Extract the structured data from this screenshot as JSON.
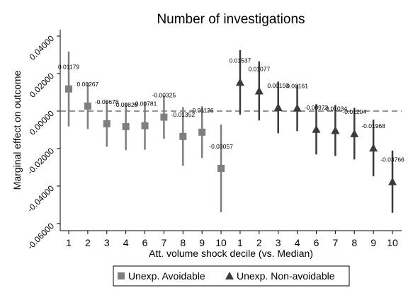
{
  "chart_data": {
    "type": "errorbar",
    "title": "Number of investigations",
    "x_label": "Att. volume shock decile (vs. Median)",
    "y_label": "Marginal effect on outcome",
    "categories": [
      "1",
      "2",
      "3",
      "4",
      "6",
      "7",
      "8",
      "9",
      "10",
      "1",
      "2",
      "3",
      "4",
      "6",
      "7",
      "8",
      "9",
      "10"
    ],
    "series": [
      {
        "name": "Unexp. Avoidable",
        "color": "#7f7f7f",
        "marker": "square",
        "values": [
          0.01179,
          0.00267,
          -0.00678,
          -0.00828,
          -0.00781,
          -0.00325,
          -0.01352,
          -0.01126,
          -0.03057,
          null,
          null,
          null,
          null,
          null,
          null,
          null,
          null,
          null
        ],
        "errors": [
          0.02,
          0.0123,
          0.0123,
          0.0126,
          0.0128,
          0.0115,
          0.0157,
          0.0138,
          0.0234,
          null,
          null,
          null,
          null,
          null,
          null,
          null,
          null,
          null
        ]
      },
      {
        "name": "Unexp. Non-avoidable",
        "color": "#3a3a3a",
        "marker": "triangle",
        "values": [
          null,
          null,
          null,
          null,
          null,
          null,
          null,
          null,
          null,
          0.01537,
          0.01077,
          0.00193,
          0.00161,
          -0.00973,
          -0.01034,
          -0.01204,
          -0.01968,
          -0.03766
        ],
        "errors": [
          null,
          null,
          null,
          null,
          null,
          null,
          null,
          null,
          null,
          0.0172,
          0.0158,
          0.0138,
          0.0123,
          0.0134,
          0.0136,
          0.0138,
          0.0151,
          0.0166
        ]
      }
    ],
    "ylim": [
      -0.0638,
      0.0434
    ],
    "yticks": [
      {
        "value": -0.06,
        "label": "-0.06000"
      },
      {
        "value": -0.04,
        "label": "-0.04000"
      },
      {
        "value": -0.02,
        "label": "-0.02000"
      },
      {
        "value": 0,
        "label": "0.00000"
      },
      {
        "value": 0.02,
        "label": "0.02000"
      },
      {
        "value": 0.04,
        "label": "0.04000"
      }
    ],
    "reference_line": 0,
    "legend": "bottom"
  }
}
